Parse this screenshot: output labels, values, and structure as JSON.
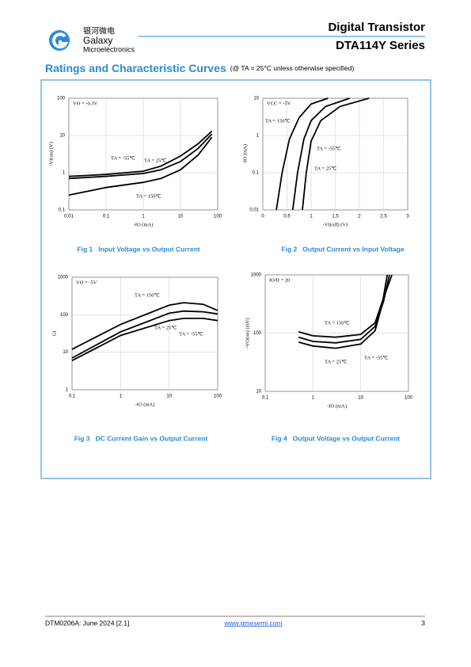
{
  "header": {
    "logo_cn": "银河微电",
    "logo_en1": "Galaxy",
    "logo_en2": "Microelectronics",
    "title": "Digital Transistor",
    "subtitle": "DTA114Y Series"
  },
  "section": {
    "title": "Ratings and Characteristic Curves",
    "note": "(@ TA = 25°C unless otherwise specified)"
  },
  "chart_data": [
    {
      "type": "line",
      "caption": "Fig 1   Input Voltage vs Output Current",
      "note": "VO = -0.3V",
      "x_label": "-IO (mA)",
      "y_label": "-VI(on) (V)",
      "x_scale": "log",
      "y_scale": "log",
      "grid": true,
      "xlim": [
        0.01,
        100
      ],
      "xticks": [
        0.01,
        0.1,
        1,
        10,
        100
      ],
      "ylim": [
        0.1,
        100
      ],
      "yticks": [
        0.1,
        1,
        10,
        100
      ],
      "series": [
        {
          "name": "TA = -55℃",
          "color": "#000000",
          "x": [
            0.01,
            0.1,
            1,
            3,
            10,
            30,
            70
          ],
          "values": [
            0.8,
            0.9,
            1.1,
            1.5,
            2.8,
            6,
            13
          ]
        },
        {
          "name": "TA = 25℃",
          "color": "#000000",
          "x": [
            0.01,
            0.1,
            1,
            3,
            10,
            30,
            70
          ],
          "values": [
            0.7,
            0.8,
            0.95,
            1.2,
            2,
            4.5,
            11
          ]
        },
        {
          "name": "TA = 150℃",
          "color": "#000000",
          "x": [
            0.01,
            0.1,
            1,
            3,
            10,
            30,
            70
          ],
          "values": [
            0.25,
            0.4,
            0.55,
            0.7,
            1.2,
            3,
            9
          ]
        }
      ]
    },
    {
      "type": "line",
      "caption": "Fig 2   Output Current vs Input Voltage",
      "note": "VCC = -5V",
      "x_label": "-VI(off) (V)",
      "y_label": "-IO (mA)",
      "x_scale": "linear",
      "y_scale": "log",
      "grid": true,
      "xlim": [
        0,
        3
      ],
      "xticks": [
        0,
        0.5,
        1,
        1.5,
        2,
        2.5,
        3
      ],
      "ylim": [
        0.01,
        10
      ],
      "yticks": [
        0.01,
        0.1,
        1,
        10
      ],
      "series": [
        {
          "name": "TA = 150℃",
          "color": "#000000",
          "x": [
            0.28,
            0.4,
            0.55,
            0.75,
            1.0,
            1.35
          ],
          "values": [
            0.01,
            0.1,
            0.8,
            3,
            7,
            10
          ]
        },
        {
          "name": "TA = -55℃",
          "color": "#000000",
          "x": [
            0.82,
            0.9,
            1.0,
            1.2,
            1.6,
            2.2
          ],
          "values": [
            0.01,
            0.1,
            0.7,
            2.5,
            6,
            10
          ]
        },
        {
          "name": "TA = 25℃",
          "color": "#000000",
          "x": [
            0.62,
            0.72,
            0.85,
            1.0,
            1.3,
            1.8
          ],
          "values": [
            0.01,
            0.1,
            0.8,
            2.5,
            6,
            10
          ]
        }
      ]
    },
    {
      "type": "line",
      "caption": "Fig 3   DC Current Gain vs Output Current",
      "note": "VO = -5V",
      "x_label": "-IO (mA)",
      "y_label": "GI",
      "x_scale": "log",
      "y_scale": "log",
      "grid": true,
      "xlim": [
        0.1,
        100
      ],
      "xticks": [
        0.1,
        1,
        10,
        100
      ],
      "ylim": [
        1,
        1000
      ],
      "yticks": [
        1,
        10,
        100,
        1000
      ],
      "series": [
        {
          "name": "TA = 150℃",
          "color": "#000000",
          "x": [
            0.1,
            1,
            10,
            20,
            50,
            100
          ],
          "values": [
            12,
            55,
            180,
            210,
            190,
            130
          ]
        },
        {
          "name": "TA = 25℃",
          "color": "#000000",
          "x": [
            0.1,
            1,
            10,
            20,
            50,
            100
          ],
          "values": [
            7,
            35,
            110,
            125,
            120,
            105
          ]
        },
        {
          "name": "TA = -55℃",
          "color": "#000000",
          "x": [
            0.1,
            1,
            10,
            20,
            50,
            100
          ],
          "values": [
            6,
            28,
            70,
            80,
            80,
            70
          ]
        }
      ]
    },
    {
      "type": "line",
      "caption": "Fig 4   Output Voltage vs Output Current",
      "note": "IO/II = 20",
      "x_label": "-IO (mA)",
      "y_label": "-VO(on) (mV)",
      "x_scale": "log",
      "y_scale": "log",
      "grid": true,
      "xlim": [
        0.1,
        100
      ],
      "xticks": [
        0.1,
        1,
        10,
        100
      ],
      "ylim": [
        10,
        1000
      ],
      "yticks": [
        10,
        100,
        1000
      ],
      "series": [
        {
          "name": "TA = 150℃",
          "color": "#000000",
          "x": [
            0.5,
            1,
            3,
            10,
            20,
            30,
            45
          ],
          "values": [
            105,
            90,
            85,
            95,
            150,
            400,
            1000
          ]
        },
        {
          "name": "TA = 25℃",
          "color": "#000000",
          "x": [
            0.5,
            1,
            3,
            10,
            20,
            30,
            40
          ],
          "values": [
            85,
            72,
            68,
            78,
            130,
            350,
            1000
          ]
        },
        {
          "name": "TA = -55℃",
          "color": "#000000",
          "x": [
            0.5,
            1,
            3,
            10,
            20,
            28,
            36
          ],
          "values": [
            70,
            60,
            55,
            65,
            110,
            300,
            1000
          ]
        }
      ]
    }
  ],
  "footer": {
    "doc": "DTM0206A: June 2024 [2.1]",
    "url": "www.gmesemi.com",
    "page": "3"
  }
}
